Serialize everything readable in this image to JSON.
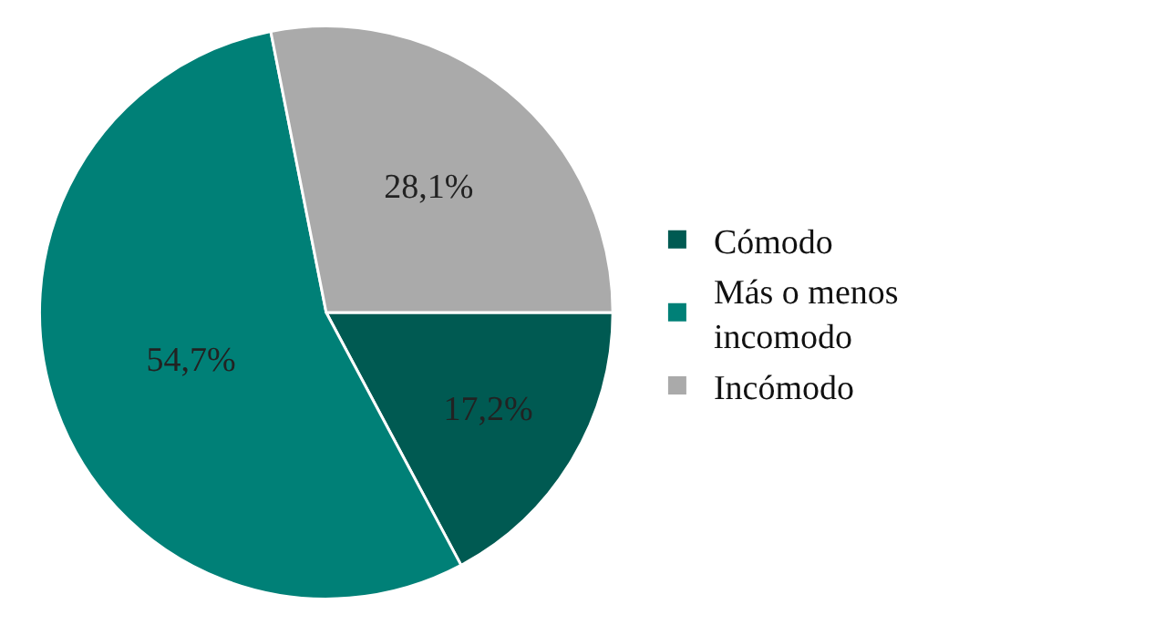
{
  "chart_data": {
    "type": "pie",
    "categories": [
      "Cómodo",
      "Más o menos incomodo",
      "Incómodo"
    ],
    "values": [
      17.2,
      54.7,
      28.1
    ],
    "colors": [
      "#005a52",
      "#008077",
      "#aaaaaa"
    ],
    "value_labels": [
      "17,2%",
      "54,7%",
      "28,1%"
    ],
    "legend": "right"
  }
}
